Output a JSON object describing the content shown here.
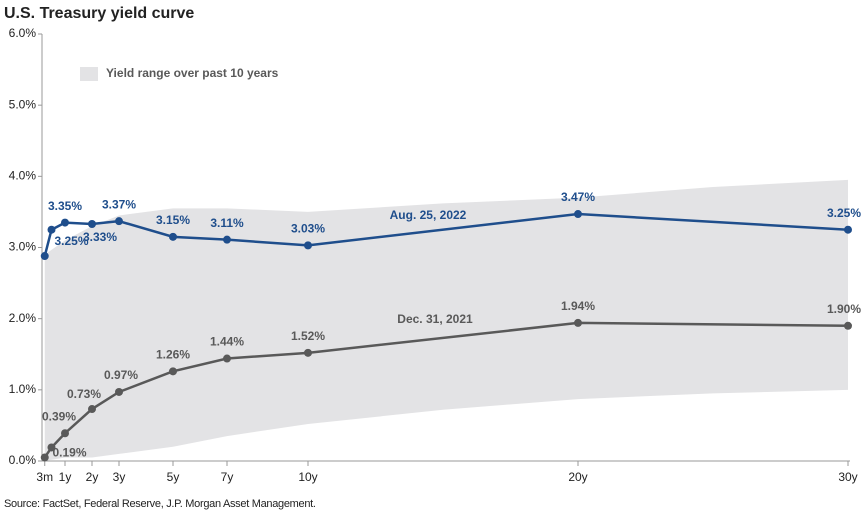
{
  "chart_data": {
    "type": "line",
    "title": "U.S. Treasury yield curve",
    "source": "Source: FactSet, Federal Reserve, J.P. Morgan Asset Management.",
    "xlim": [
      0,
      30
    ],
    "xticks": [
      {
        "value": 0.25,
        "label": "3m"
      },
      {
        "value": 1,
        "label": "1y"
      },
      {
        "value": 2,
        "label": "2y"
      },
      {
        "value": 3,
        "label": "3y"
      },
      {
        "value": 5,
        "label": "5y"
      },
      {
        "value": 7,
        "label": "7y"
      },
      {
        "value": 10,
        "label": "10y"
      },
      {
        "value": 20,
        "label": "20y"
      },
      {
        "value": 30,
        "label": "30y"
      }
    ],
    "ylim": [
      0,
      6
    ],
    "yticks": [
      {
        "value": 0,
        "label": "0.0%"
      },
      {
        "value": 1,
        "label": "1.0%"
      },
      {
        "value": 2,
        "label": "2.0%"
      },
      {
        "value": 3,
        "label": "3.0%"
      },
      {
        "value": 4,
        "label": "4.0%"
      },
      {
        "value": 5,
        "label": "5.0%"
      },
      {
        "value": 6,
        "label": "6.0%"
      }
    ],
    "range": {
      "name": "Yield range over past 10 years",
      "color": "#e3e3e5",
      "x": [
        0.25,
        1,
        2,
        3,
        5,
        7,
        10,
        15,
        20,
        25,
        30
      ],
      "lower": [
        0.0,
        0.05,
        0.05,
        0.1,
        0.2,
        0.35,
        0.52,
        0.72,
        0.87,
        0.95,
        1.0
      ],
      "upper": [
        2.9,
        3.1,
        3.3,
        3.45,
        3.55,
        3.55,
        3.5,
        3.62,
        3.7,
        3.85,
        3.95
      ]
    },
    "series": [
      {
        "name": "Aug. 25, 2022",
        "color": "#1f4e8c",
        "x": [
          0.25,
          0.5,
          1,
          2,
          3,
          5,
          7,
          10,
          20,
          30
        ],
        "values": [
          2.88,
          3.25,
          3.35,
          3.33,
          3.37,
          3.15,
          3.11,
          3.03,
          3.47,
          3.25
        ],
        "value_labels": [
          null,
          "3.25%",
          "3.35%",
          "3.33%",
          "3.37%",
          "3.15%",
          "3.11%",
          "3.03%",
          "3.47%",
          "3.25%"
        ]
      },
      {
        "name": "Dec. 31, 2021",
        "color": "#595959",
        "x": [
          0.25,
          0.5,
          1,
          2,
          3,
          5,
          7,
          10,
          20,
          30
        ],
        "values": [
          0.05,
          0.19,
          0.39,
          0.73,
          0.97,
          1.26,
          1.44,
          1.52,
          1.94,
          1.9
        ],
        "value_labels": [
          null,
          "0.19%",
          "0.39%",
          "0.73%",
          "0.97%",
          "1.26%",
          "1.44%",
          "1.52%",
          "1.94%",
          "1.90%"
        ]
      }
    ]
  }
}
